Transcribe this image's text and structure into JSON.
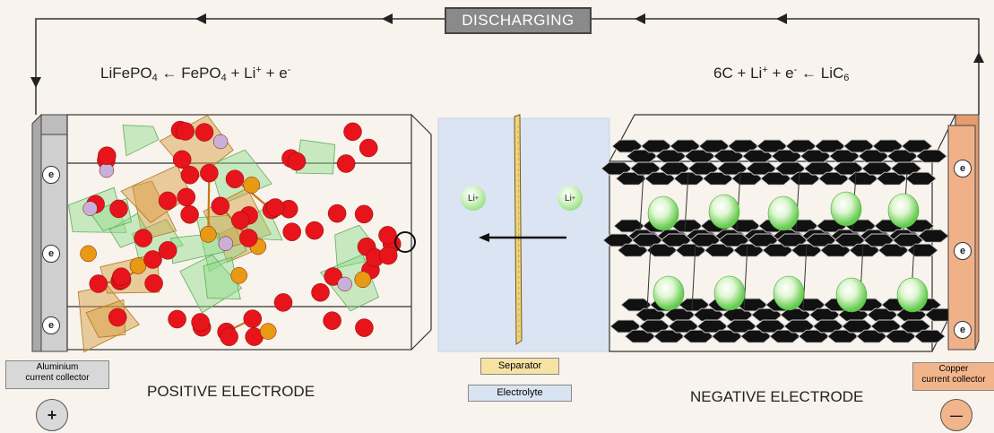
{
  "banner": {
    "label": "DISCHARGING"
  },
  "equations": {
    "positive": {
      "a": "LiFePO",
      "a_sub": "4",
      "arrow": "←",
      "b": "FePO",
      "b_sub": "4",
      "c": "+ Li",
      "c_sup": "+",
      "d": "+ e",
      "d_sup": "-"
    },
    "negative": {
      "a": "6C + Li",
      "a_sup": "+",
      "b": "+ e",
      "b_sup": "-",
      "arrow": "←",
      "c": "LiC",
      "c_sub": "6"
    }
  },
  "electron_symbol": "e",
  "li_ion": {
    "symbol": "Li",
    "charge": "+"
  },
  "collectors": {
    "aluminium": {
      "line1": "Aluminium",
      "line2": "current collector",
      "color": "#d8d8d8"
    },
    "copper": {
      "line1": "Copper",
      "line2": "current collector",
      "color": "#f2b48a"
    }
  },
  "center_tags": {
    "separator": "Separator",
    "electrolyte": "Electrolyte",
    "separator_color": "#f6e3a4",
    "electrolyte_color": "#d9e4f3"
  },
  "captions": {
    "positive": "POSITIVE ELECTRODE",
    "negative": "NEGATIVE ELECTRODE"
  },
  "terminals": {
    "positive": "+",
    "negative": "—"
  },
  "colors": {
    "oxygen": "#e8141b",
    "iron": "#e89a12",
    "lithium_site": "#c9b0d8",
    "polyhedra": "#8fdc8a",
    "graphene": "#111111",
    "electrolyte": "#dbe5f3"
  }
}
